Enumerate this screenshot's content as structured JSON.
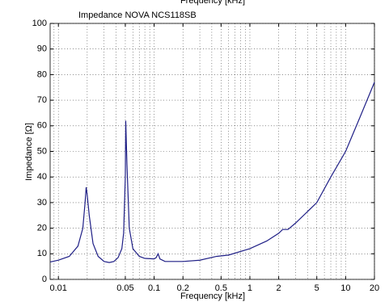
{
  "chart_data": {
    "type": "line",
    "title": "Impedance    NOVA NCS118SB",
    "xlabel": "Frequency [kHz]",
    "ylabel": "Impedance [Ω]",
    "xscale": "log",
    "grid": true,
    "xlim": [
      0.0082,
      20
    ],
    "ylim": [
      0,
      100
    ],
    "xticks": [
      0.01,
      0.05,
      0.1,
      0.2,
      0.5,
      1,
      2,
      5,
      10,
      20
    ],
    "yticks": [
      0,
      10,
      20,
      30,
      40,
      50,
      60,
      70,
      80,
      90,
      100
    ],
    "series": [
      {
        "color": "#1f1f86",
        "x": [
          0.0082,
          0.01,
          0.013,
          0.016,
          0.018,
          0.019,
          0.0195,
          0.02,
          0.021,
          0.023,
          0.026,
          0.03,
          0.034,
          0.038,
          0.042,
          0.046,
          0.048,
          0.05,
          0.0505,
          0.052,
          0.055,
          0.06,
          0.07,
          0.08,
          0.1,
          0.105,
          0.11,
          0.115,
          0.13,
          0.2,
          0.3,
          0.45,
          0.6,
          1,
          1.5,
          2,
          2.2,
          2.5,
          3,
          5,
          7,
          10,
          14,
          20
        ],
        "values": [
          6.8,
          7.5,
          9,
          13,
          20,
          30,
          36,
          33,
          25,
          14,
          9,
          7,
          6.6,
          7,
          8.5,
          12,
          18,
          40,
          62,
          45,
          20,
          12,
          9,
          8.2,
          8,
          8.5,
          10,
          8,
          7,
          7,
          7.5,
          9,
          9.5,
          12,
          15,
          18,
          19.5,
          19.5,
          22,
          30,
          40,
          50,
          63,
          77
        ]
      }
    ]
  }
}
